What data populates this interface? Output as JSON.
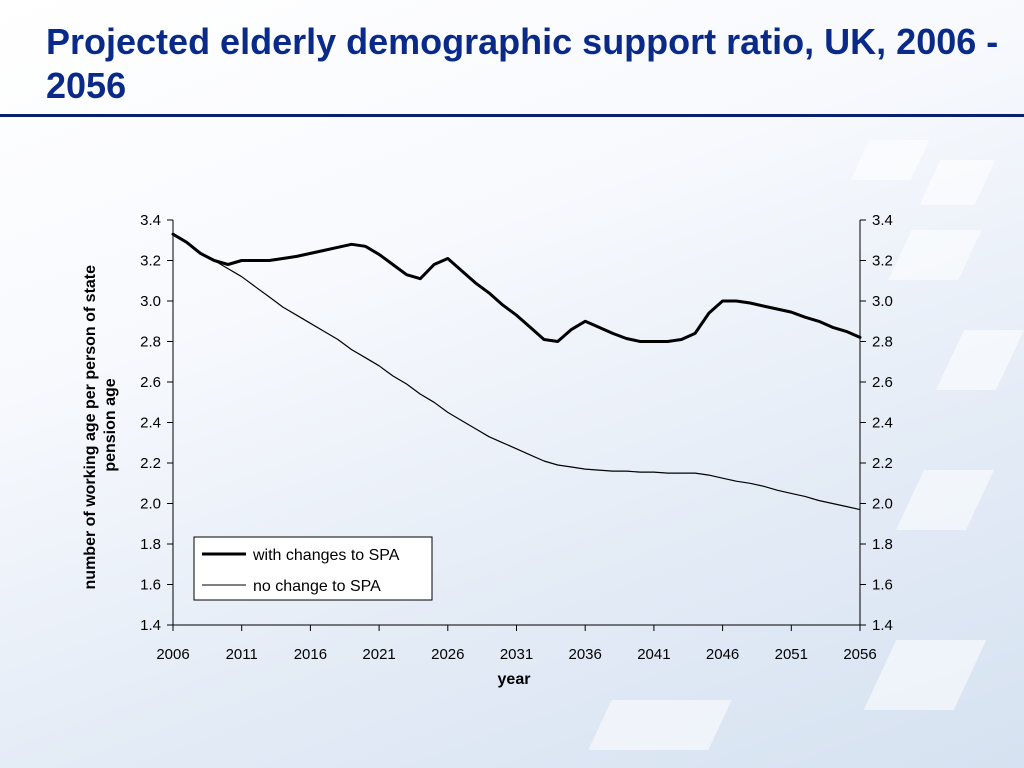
{
  "slide": {
    "title": "Projected elderly demographic support ratio, UK, 2006 - 2056"
  },
  "colors": {
    "title": "#0a2a8a",
    "rule": "#0a1f6e",
    "series": "#000000"
  },
  "chart_data": {
    "type": "line",
    "xlabel": "year",
    "ylabel_lines": [
      "number of working age per person of state",
      "pension age"
    ],
    "xlim": [
      2006,
      2056
    ],
    "ylim": [
      1.4,
      3.4
    ],
    "x_ticks": [
      "2006",
      "2011",
      "2016",
      "2021",
      "2026",
      "2031",
      "2036",
      "2041",
      "2046",
      "2051",
      "2056"
    ],
    "y_ticks": [
      "1.4",
      "1.6",
      "1.8",
      "2.0",
      "2.2",
      "2.4",
      "2.6",
      "2.8",
      "3.0",
      "3.2",
      "3.4"
    ],
    "secondary_y_axis": true,
    "grid": false,
    "legend": "bottom-left",
    "series": [
      {
        "name": "with changes to SPA",
        "style": "thick",
        "x": [
          2006,
          2007,
          2008,
          2009,
          2010,
          2011,
          2012,
          2013,
          2014,
          2015,
          2016,
          2017,
          2018,
          2019,
          2020,
          2021,
          2022,
          2023,
          2024,
          2025,
          2026,
          2027,
          2028,
          2029,
          2030,
          2031,
          2032,
          2033,
          2034,
          2035,
          2036,
          2037,
          2038,
          2039,
          2040,
          2041,
          2042,
          2043,
          2044,
          2045,
          2046,
          2047,
          2048,
          2049,
          2050,
          2051,
          2052,
          2053,
          2054,
          2055,
          2056
        ],
        "y": [
          3.33,
          3.29,
          3.235,
          3.2,
          3.18,
          3.2,
          3.2,
          3.2,
          3.21,
          3.22,
          3.235,
          3.25,
          3.265,
          3.28,
          3.27,
          3.23,
          3.18,
          3.13,
          3.11,
          3.18,
          3.21,
          3.15,
          3.09,
          3.04,
          2.98,
          2.93,
          2.87,
          2.81,
          2.8,
          2.86,
          2.9,
          2.87,
          2.84,
          2.815,
          2.8,
          2.8,
          2.8,
          2.81,
          2.84,
          2.94,
          3.0,
          3.0,
          2.99,
          2.975,
          2.96,
          2.945,
          2.92,
          2.9,
          2.87,
          2.85,
          2.82
        ]
      },
      {
        "name": "no change to SPA",
        "style": "thin",
        "x": [
          2006,
          2007,
          2008,
          2009,
          2010,
          2011,
          2012,
          2013,
          2014,
          2015,
          2016,
          2017,
          2018,
          2019,
          2020,
          2021,
          2022,
          2023,
          2024,
          2025,
          2026,
          2027,
          2028,
          2029,
          2030,
          2031,
          2032,
          2033,
          2034,
          2035,
          2036,
          2037,
          2038,
          2039,
          2040,
          2041,
          2042,
          2043,
          2044,
          2045,
          2046,
          2047,
          2048,
          2049,
          2050,
          2051,
          2052,
          2053,
          2054,
          2055,
          2056
        ],
        "y": [
          3.33,
          3.29,
          3.24,
          3.2,
          3.16,
          3.12,
          3.07,
          3.02,
          2.97,
          2.93,
          2.89,
          2.85,
          2.81,
          2.76,
          2.72,
          2.68,
          2.63,
          2.59,
          2.54,
          2.5,
          2.45,
          2.41,
          2.37,
          2.33,
          2.3,
          2.27,
          2.24,
          2.21,
          2.19,
          2.18,
          2.17,
          2.165,
          2.16,
          2.16,
          2.155,
          2.155,
          2.15,
          2.15,
          2.15,
          2.14,
          2.125,
          2.11,
          2.1,
          2.085,
          2.065,
          2.05,
          2.035,
          2.015,
          2.0,
          1.985,
          1.97
        ]
      }
    ]
  }
}
